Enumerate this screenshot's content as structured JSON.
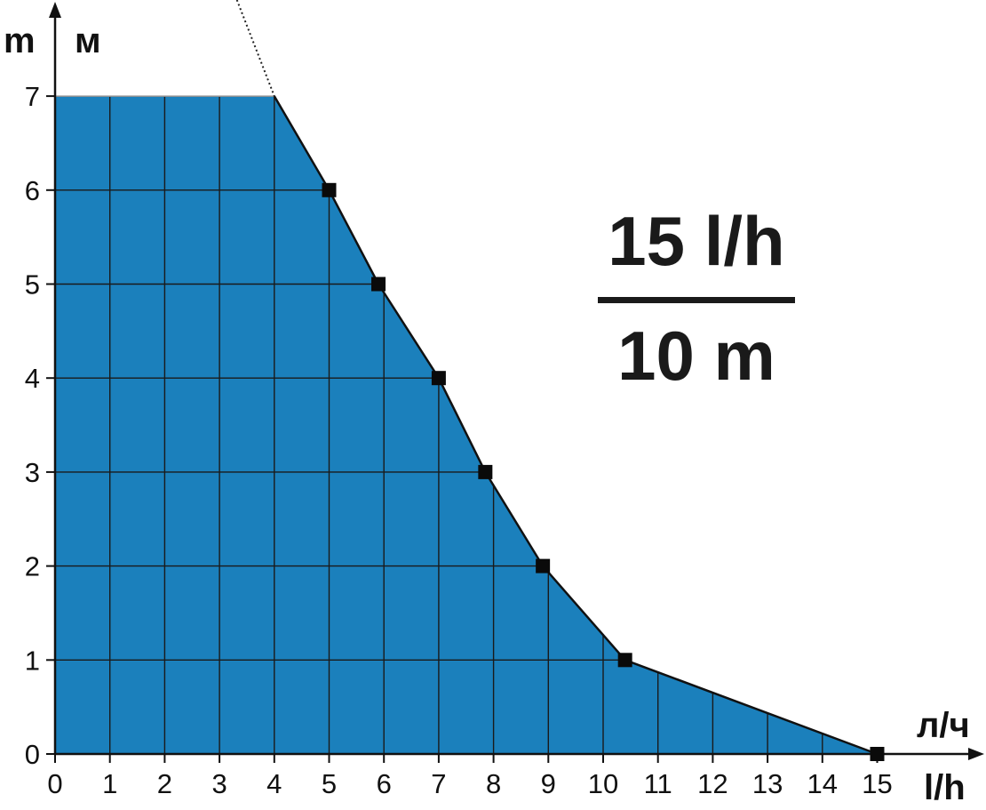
{
  "chart_data": {
    "type": "area",
    "x_ticks": [
      0,
      1,
      2,
      3,
      4,
      5,
      6,
      7,
      8,
      9,
      10,
      11,
      12,
      13,
      14,
      15
    ],
    "y_ticks": [
      0,
      1,
      2,
      3,
      4,
      5,
      6,
      7
    ],
    "xlim": [
      0,
      15
    ],
    "ylim": [
      0,
      7
    ],
    "grid": true,
    "x_units": {
      "primary": "l/h",
      "secondary": "л/ч"
    },
    "y_units": {
      "primary": "m",
      "secondary": "м"
    },
    "series": [
      {
        "values_x": [
          0,
          4,
          5,
          5.9,
          7,
          7.85,
          8.9,
          10.4,
          15
        ],
        "values_y": [
          7,
          7,
          6,
          5,
          4,
          3,
          2,
          1,
          0
        ],
        "markers_x": [
          5,
          5.9,
          7,
          7.85,
          8.9,
          10.4,
          15
        ],
        "markers_y": [
          6,
          5,
          4,
          3,
          2,
          1,
          0
        ],
        "extension_x": [
          3.2,
          4
        ],
        "extension_y": [
          8.2,
          7
        ]
      }
    ],
    "annotation": {
      "flow": "15 l/h",
      "head": "10 m"
    },
    "colors": {
      "fill": "#1b80bc",
      "line": "#111111",
      "grid": "#1a1a1a"
    }
  }
}
